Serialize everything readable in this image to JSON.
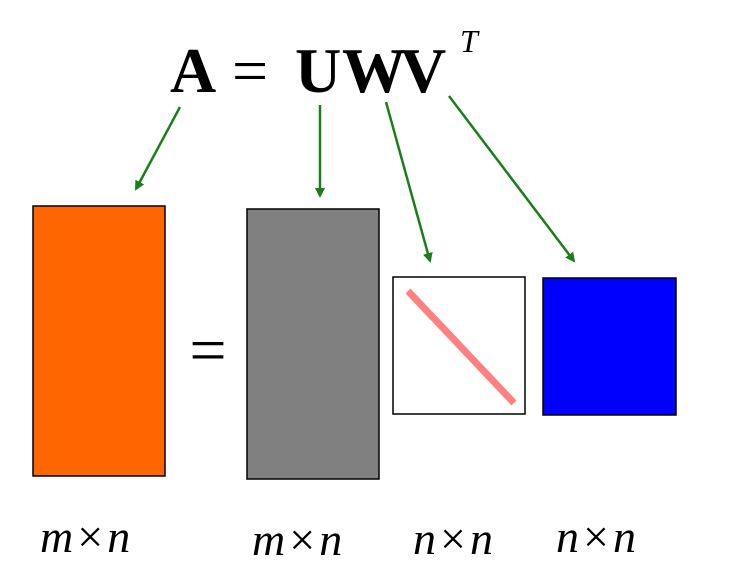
{
  "equation": {
    "lhs": "A",
    "equals": "=",
    "factors": [
      "U",
      "W",
      "V"
    ],
    "superscript": "T"
  },
  "diagram": {
    "equals_sign": "=",
    "matrices": [
      {
        "id": "A",
        "fill": "#FF6600",
        "dims": {
          "rows": "m",
          "times": "×",
          "cols": "n"
        }
      },
      {
        "id": "U",
        "fill": "#808080",
        "dims": {
          "rows": "m",
          "times": "×",
          "cols": "n"
        }
      },
      {
        "id": "W",
        "fill": "#FFFFFF",
        "diagonal_color": "#FF8080",
        "dims": {
          "rows": "n",
          "times": "×",
          "cols": "n"
        }
      },
      {
        "id": "V",
        "fill": "#0000FF",
        "dims": {
          "rows": "n",
          "times": "×",
          "cols": "n"
        }
      }
    ],
    "arrow_color": "#1A7F1A"
  }
}
